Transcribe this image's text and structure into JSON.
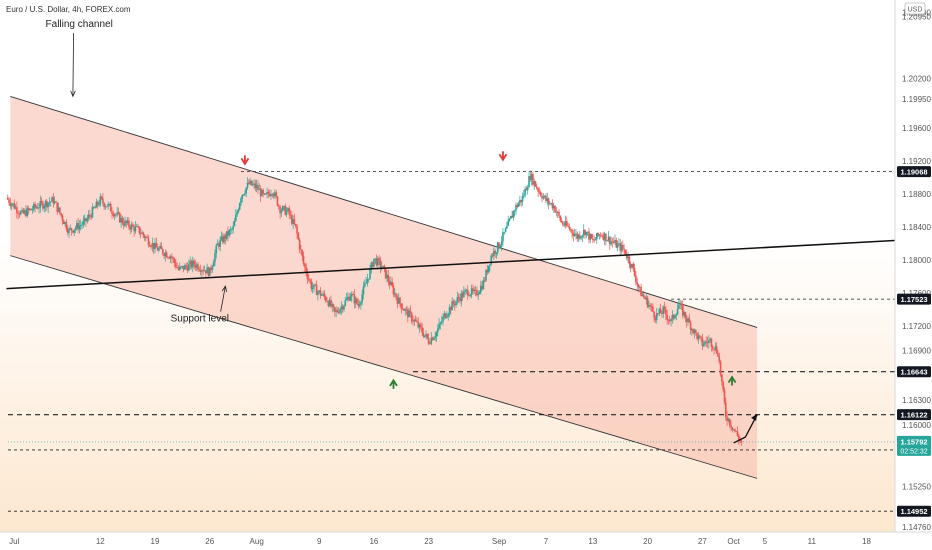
{
  "header": {
    "title": "Euro / U.S. Dollar, 4h, FOREX.com",
    "currency": "USD"
  },
  "colors": {
    "bull": "#26a69a",
    "bear": "#ef5350",
    "channel_fill": "#f8c0b0",
    "grad_top": "#ffffff",
    "grad_bottom": "#fde7cf"
  },
  "chart_data": {
    "type": "candlestick",
    "symbol": "Euro / U.S. Dollar",
    "timeframe": "4h",
    "source": "FOREX.com",
    "y_ticks": [
      1.21,
      1.2095,
      1.202,
      1.1995,
      1.196,
      1.192,
      1.188,
      1.184,
      1.18,
      1.176,
      1.172,
      1.169,
      1.163,
      1.16,
      1.1525,
      1.1495,
      1.1476
    ],
    "y_tick_labels": [
      "1.21000",
      "1.20950",
      "1.20200",
      "1.19950",
      "1.19600",
      "1.19200",
      "1.18800",
      "1.18400",
      "1.18000",
      "1.17600",
      "1.17200",
      "1.16900",
      "1.16300",
      "1.16000",
      "1.15250",
      "1.14952",
      "1.14760"
    ],
    "x_ticks": [
      {
        "label": "Jul",
        "day": 0
      },
      {
        "label": "12",
        "day": 11
      },
      {
        "label": "19",
        "day": 18
      },
      {
        "label": "26",
        "day": 25
      },
      {
        "label": "Aug",
        "day": 31
      },
      {
        "label": "9",
        "day": 39
      },
      {
        "label": "16",
        "day": 46
      },
      {
        "label": "23",
        "day": 53
      },
      {
        "label": "Sep",
        "day": 62
      },
      {
        "label": "7",
        "day": 68
      },
      {
        "label": "13",
        "day": 74
      },
      {
        "label": "20",
        "day": 81
      },
      {
        "label": "27",
        "day": 88
      },
      {
        "label": "Oct",
        "day": 92
      },
      {
        "label": "5",
        "day": 96
      },
      {
        "label": "11",
        "day": 102
      },
      {
        "label": "18",
        "day": 109
      }
    ],
    "levels": [
      {
        "label": "1.19068",
        "value": 1.19068
      },
      {
        "label": "1.17523",
        "value": 1.17523
      },
      {
        "label": "1.16643",
        "value": 1.16643
      },
      {
        "label": "1.16122",
        "value": 1.16122
      },
      {
        "label": "1.15695",
        "value": 1.15695
      },
      {
        "label": "1.14952",
        "value": 1.14952
      }
    ],
    "last_price": {
      "label": "1.15792",
      "value": 1.15792,
      "countdown": "02:52:32"
    },
    "close_path": [
      [
        -1,
        1.1875
      ],
      [
        1,
        1.1855
      ],
      [
        3,
        1.1865
      ],
      [
        5,
        1.1872
      ],
      [
        7,
        1.1835
      ],
      [
        9,
        1.1845
      ],
      [
        11,
        1.1872
      ],
      [
        12,
        1.1865
      ],
      [
        14,
        1.1845
      ],
      [
        16,
        1.1835
      ],
      [
        18,
        1.1815
      ],
      [
        20,
        1.1805
      ],
      [
        21,
        1.1788
      ],
      [
        23,
        1.1795
      ],
      [
        25,
        1.1785
      ],
      [
        26,
        1.1818
      ],
      [
        28,
        1.1838
      ],
      [
        29,
        1.1878
      ],
      [
        30,
        1.1892
      ],
      [
        31,
        1.1888
      ],
      [
        32,
        1.1875
      ],
      [
        33,
        1.1885
      ],
      [
        34,
        1.1862
      ],
      [
        35,
        1.1858
      ],
      [
        36,
        1.1838
      ],
      [
        37,
        1.1795
      ],
      [
        38,
        1.1768
      ],
      [
        40,
        1.1752
      ],
      [
        41,
        1.1735
      ],
      [
        42,
        1.1745
      ],
      [
        43,
        1.1758
      ],
      [
        44,
        1.1745
      ],
      [
        45,
        1.1772
      ],
      [
        46,
        1.1801
      ],
      [
        47,
        1.1792
      ],
      [
        48,
        1.1772
      ],
      [
        49,
        1.1752
      ],
      [
        50,
        1.1738
      ],
      [
        51,
        1.1728
      ],
      [
        52,
        1.1715
      ],
      [
        53,
        1.1702
      ],
      [
        54,
        1.1712
      ],
      [
        55,
        1.1732
      ],
      [
        56,
        1.1745
      ],
      [
        57,
        1.1755
      ],
      [
        58,
        1.1762
      ],
      [
        59,
        1.1758
      ],
      [
        60,
        1.1772
      ],
      [
        61,
        1.1805
      ],
      [
        62,
        1.1818
      ],
      [
        63,
        1.1838
      ],
      [
        64,
        1.1862
      ],
      [
        65,
        1.1875
      ],
      [
        66,
        1.1902
      ],
      [
        67,
        1.1885
      ],
      [
        68,
        1.1872
      ],
      [
        69,
        1.1865
      ],
      [
        70,
        1.1845
      ],
      [
        71,
        1.1838
      ],
      [
        72,
        1.1828
      ],
      [
        73,
        1.1835
      ],
      [
        74,
        1.1822
      ],
      [
        75,
        1.1832
      ],
      [
        76,
        1.1825
      ],
      [
        77,
        1.1818
      ],
      [
        78,
        1.1812
      ],
      [
        79,
        1.1792
      ],
      [
        80,
        1.1762
      ],
      [
        81,
        1.1748
      ],
      [
        82,
        1.1732
      ],
      [
        83,
        1.1738
      ],
      [
        84,
        1.1725
      ],
      [
        85,
        1.1745
      ],
      [
        86,
        1.1728
      ],
      [
        87,
        1.1712
      ],
      [
        88,
        1.1698
      ],
      [
        89,
        1.1702
      ],
      [
        90,
        1.1688
      ],
      [
        91,
        1.1612
      ],
      [
        92,
        1.1595
      ],
      [
        93,
        1.1578
      ]
    ],
    "drawings": {
      "channel_upper": [
        [
          -0.5,
          1.1998
        ],
        [
          95,
          1.1718
        ]
      ],
      "channel_lower": [
        [
          -0.5,
          1.1805
        ],
        [
          95,
          1.1535
        ]
      ],
      "support_line": [
        [
          -1,
          1.1765
        ],
        [
          110,
          1.1822
        ]
      ],
      "arrow_path": [
        [
          92,
          1.1578
        ],
        [
          93.5,
          1.1585
        ],
        [
          95,
          1.1612
        ]
      ]
    },
    "markers": [
      {
        "kind": "down",
        "color": "#e53935",
        "day": 29.5,
        "price": 1.1918
      },
      {
        "kind": "down",
        "color": "#e53935",
        "day": 62.5,
        "price": 1.1923
      },
      {
        "kind": "up",
        "color": "#2e7d32",
        "day": 48.5,
        "price": 1.1652
      },
      {
        "kind": "up",
        "color": "#2e7d32",
        "day": 91.8,
        "price": 1.1656
      }
    ],
    "annotations": [
      {
        "text": "Falling channel",
        "day": 4,
        "price": 1.2082,
        "arrow_to": [
          7.5,
          1.1998
        ]
      },
      {
        "text": "Support level",
        "day": 20,
        "price": 1.1725,
        "arrow_to": [
          27,
          1.1768
        ]
      }
    ],
    "ylim": [
      1.147,
      1.211
    ],
    "xlim": [
      -0.8,
      112
    ]
  }
}
